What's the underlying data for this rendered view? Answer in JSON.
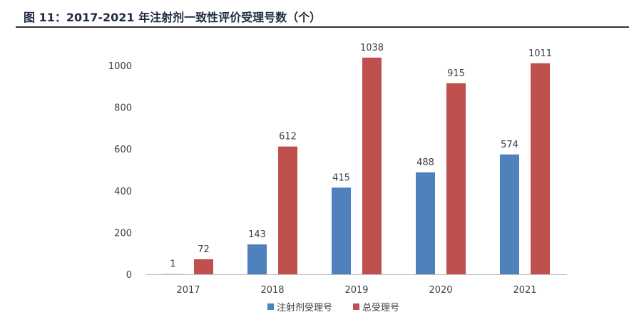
{
  "header": {
    "title": "图 11：2017-2021 年注射剂一致性评价受理号数（个）"
  },
  "chart_data": {
    "type": "bar",
    "title": "",
    "xlabel": "",
    "ylabel": "",
    "categories": [
      "2017",
      "2018",
      "2019",
      "2020",
      "2021"
    ],
    "series": [
      {
        "name": "注射剂受理号",
        "values": [
          1,
          143,
          415,
          488,
          574
        ],
        "color": "#4f81bd"
      },
      {
        "name": "总受理号",
        "values": [
          72,
          612,
          1038,
          915,
          1011
        ],
        "color": "#c0504d"
      }
    ],
    "ylim": [
      0,
      1000
    ],
    "yticks": [
      0,
      200,
      400,
      600,
      800,
      1000
    ],
    "grid": false,
    "legend_position": "bottom",
    "data_labels": true
  }
}
